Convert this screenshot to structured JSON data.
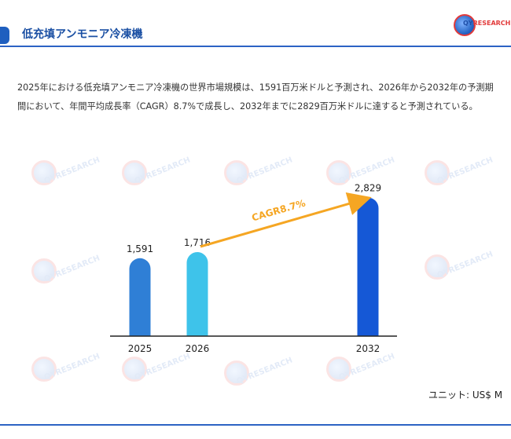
{
  "header": {
    "title": "低充填アンモニア冷凍機",
    "logo_text_main": "QY",
    "logo_text_accent": "RESEARCH"
  },
  "description": "2025年における低充填アンモニア冷凍機の世界市場規模は、1591百万米ドルと予測され、2026年から2032年の予測期間において、年間平均成長率（CAGR）8.7%で成長し、2032年までに2829百万米ドルに達すると予測されている。",
  "watermark_text": "QYRESEARCH",
  "unit_label": "ユニット: US$ M",
  "colors": {
    "header_accent": "#1f5fbf",
    "arrow": "#f5a623",
    "cagr_text": "#f5a623"
  },
  "chart_data": {
    "type": "bar",
    "title": "",
    "xlabel": "",
    "ylabel": "",
    "categories": [
      "2025",
      "2026",
      "2032"
    ],
    "values": [
      1591,
      1716,
      2829
    ],
    "value_labels": [
      "1,591",
      "1,716",
      "2,829"
    ],
    "bar_colors": [
      "#2f7fd6",
      "#3ec3ea",
      "#1558d6"
    ],
    "ylim": [
      0,
      3000
    ],
    "grid": false,
    "annotation": {
      "text": "CAGR8.7%",
      "from": "2026",
      "to": "2032"
    }
  }
}
